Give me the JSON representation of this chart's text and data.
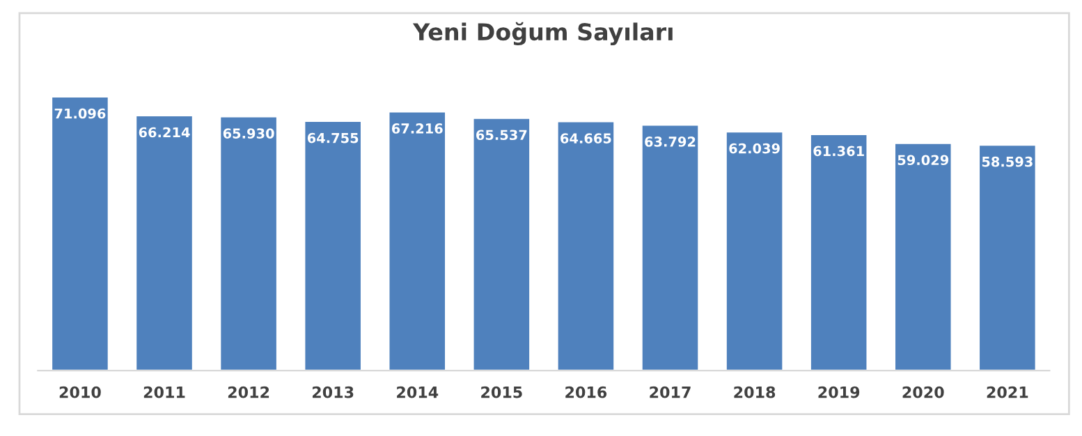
{
  "chart_data": {
    "type": "bar",
    "title": "Yeni Doğum Sayıları",
    "categories": [
      "2010",
      "2011",
      "2012",
      "2013",
      "2014",
      "2015",
      "2016",
      "2017",
      "2018",
      "2019",
      "2020",
      "2021"
    ],
    "values": [
      71096,
      66214,
      65930,
      64755,
      67216,
      65537,
      64665,
      63792,
      62039,
      61361,
      59029,
      58593
    ],
    "value_labels": [
      "71.096",
      "66.214",
      "65.930",
      "64.755",
      "67.216",
      "65.537",
      "64.665",
      "63.792",
      "62.039",
      "61.361",
      "59.029",
      "58.593"
    ],
    "color": "#4f81bd",
    "tick_labels": "x",
    "grid": false,
    "legend": false
  }
}
